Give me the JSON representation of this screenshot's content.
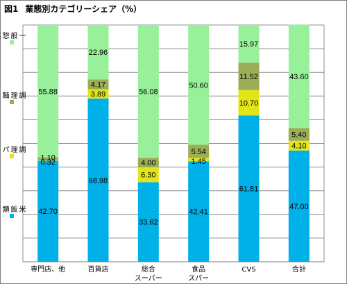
{
  "figure_label": "図1",
  "title": "業態別カテゴリーシェア（%）",
  "legend": [
    {
      "name": "一般惣菜",
      "color": "#99F09A"
    },
    {
      "name": "調理麺",
      "color": "#9BAE57"
    },
    {
      "name": "調理パン",
      "color": "#E3E41A"
    },
    {
      "name": "米飯類",
      "color": "#00B0E8"
    }
  ],
  "chart_data": {
    "type": "bar",
    "stacked": true,
    "title": "業態別カテゴリーシェア（%）",
    "categories": [
      [
        "専門店、他"
      ],
      [
        "百貨店"
      ],
      [
        "総合",
        "スーパー"
      ],
      [
        "食品",
        "スパー"
      ],
      [
        "CVS"
      ],
      [
        "合計"
      ]
    ],
    "ylim": [
      0,
      100
    ],
    "grid": true,
    "legend_position": "left",
    "series": [
      {
        "name": "米飯類",
        "color": "#00B0E8",
        "values": [
          42.7,
          68.98,
          33.62,
          42.41,
          61.81,
          47.0
        ],
        "labels": [
          "42.70",
          "68.98",
          "33.62",
          "42.41",
          "61.81",
          "47.00"
        ]
      },
      {
        "name": "調理パン",
        "color": "#E3E41A",
        "values": [
          0.32,
          3.89,
          6.3,
          1.45,
          10.7,
          4.1
        ],
        "labels": [
          "0.32",
          "3.89",
          "6.30",
          "1.45",
          "10.70",
          "4.10"
        ]
      },
      {
        "name": "調理麺",
        "color": "#9BAE57",
        "values": [
          1.1,
          4.17,
          4.0,
          5.54,
          11.52,
          5.4
        ],
        "labels": [
          "1.10",
          "4.17",
          "4.00",
          "5.54",
          "11.52",
          "5.40"
        ]
      },
      {
        "name": "一般惣菜",
        "color": "#99F09A",
        "values": [
          55.88,
          22.96,
          56.08,
          50.6,
          15.97,
          43.6
        ],
        "labels": [
          "55.88",
          "22.96",
          "56.08",
          "50.60",
          "15.97",
          "43.60"
        ]
      }
    ]
  }
}
